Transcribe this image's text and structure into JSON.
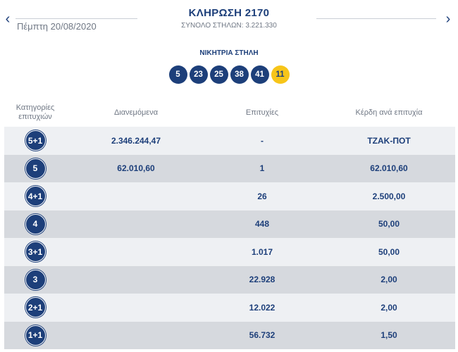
{
  "header": {
    "prev_icon": "chevron-left-icon",
    "next_icon": "chevron-right-icon",
    "date": "Πέμπτη 20/08/2020",
    "title": "ΚΛΗΡΩΣΗ 2170",
    "subtitle": "ΣΥΝΟΛΟ ΣΤΗΛΩΝ: 3.221.330"
  },
  "winning": {
    "label": "ΝΙΚΗΤΡΙΑ ΣΤΗΛΗ",
    "numbers": [
      "5",
      "23",
      "25",
      "38",
      "41"
    ],
    "joker": "11",
    "colors": {
      "ball": "#1d3f7a",
      "joker": "#f7c519"
    }
  },
  "table": {
    "headers": {
      "categories": "Κατηγορίες επιτυχιών",
      "distributed": "Διανεμόμενα",
      "winners": "Επιτυχίες",
      "prize": "Κέρδη ανά επιτυχία"
    },
    "rows": [
      {
        "category": "5+1",
        "distributed": "2.346.244,47",
        "winners": "-",
        "prize": "ΤΖΑΚ-ΠΟΤ"
      },
      {
        "category": "5",
        "distributed": "62.010,60",
        "winners": "1",
        "prize": "62.010,60"
      },
      {
        "category": "4+1",
        "distributed": "",
        "winners": "26",
        "prize": "2.500,00"
      },
      {
        "category": "4",
        "distributed": "",
        "winners": "448",
        "prize": "50,00"
      },
      {
        "category": "3+1",
        "distributed": "",
        "winners": "1.017",
        "prize": "50,00"
      },
      {
        "category": "3",
        "distributed": "",
        "winners": "22.928",
        "prize": "2,00"
      },
      {
        "category": "2+1",
        "distributed": "",
        "winners": "12.022",
        "prize": "2,00"
      },
      {
        "category": "1+1",
        "distributed": "",
        "winners": "56.732",
        "prize": "1,50"
      }
    ]
  }
}
